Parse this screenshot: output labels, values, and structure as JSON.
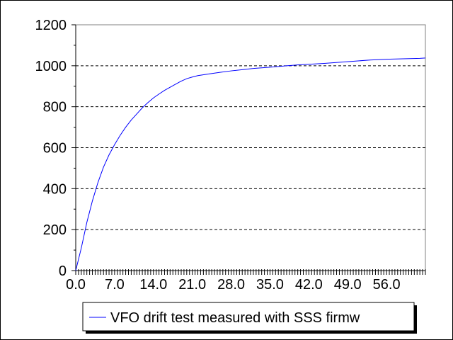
{
  "chart_data": {
    "type": "line",
    "title": "",
    "xlabel": "",
    "ylabel": "",
    "xlim": [
      0,
      63
    ],
    "ylim": [
      0,
      1200
    ],
    "grid": "horizontal dashed",
    "legend_position": "bottom-center",
    "x_ticks": [
      "0.0",
      "7.0",
      "14.0",
      "21.0",
      "28.0",
      "35.0",
      "42.0",
      "49.0",
      "56.0"
    ],
    "y_ticks": [
      "0",
      "200",
      "400",
      "600",
      "800",
      "1000",
      "1200"
    ],
    "series": [
      {
        "name": "VFO drift test measured with SSS firmw",
        "color": "#0000ff",
        "x": [
          0,
          1,
          2,
          3,
          4,
          5,
          6,
          7,
          8,
          9,
          10,
          11,
          12,
          13,
          14,
          15,
          16,
          17,
          18,
          19,
          20,
          21,
          22,
          24,
          26,
          28,
          30,
          32,
          35,
          38,
          40,
          42,
          45,
          48,
          50,
          53,
          56,
          59,
          62,
          63
        ],
        "y": [
          0,
          110,
          235,
          340,
          430,
          505,
          565,
          615,
          660,
          700,
          735,
          765,
          795,
          820,
          843,
          862,
          880,
          895,
          910,
          925,
          937,
          945,
          952,
          960,
          968,
          975,
          981,
          987,
          993,
          1000,
          1004,
          1007,
          1012,
          1018,
          1022,
          1028,
          1032,
          1034,
          1036,
          1038
        ]
      }
    ]
  }
}
